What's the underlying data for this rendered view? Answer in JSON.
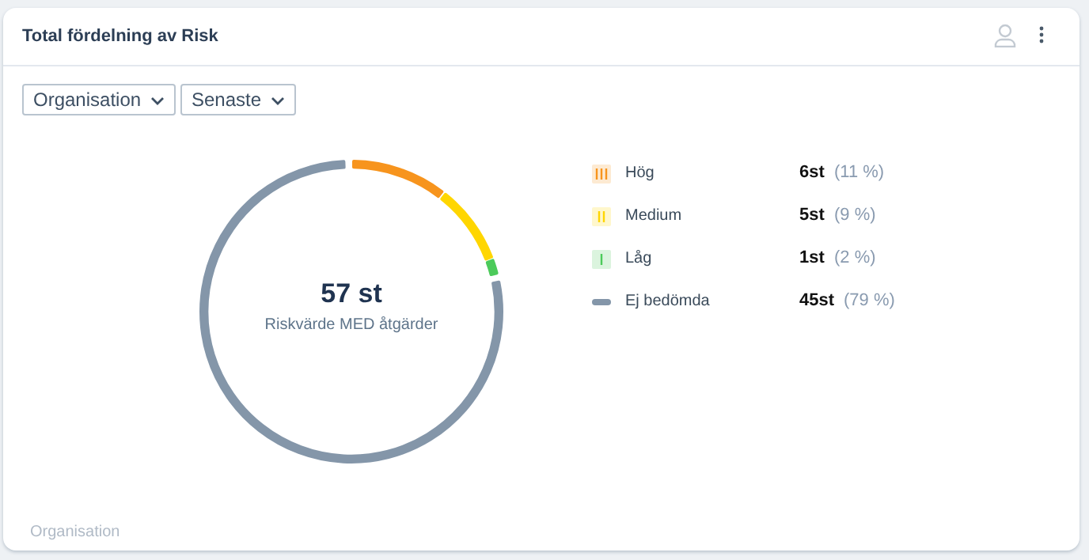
{
  "chart_data": {
    "type": "donut",
    "title": "Total fördelning av Risk",
    "categories": [
      "Hög",
      "Medium",
      "Låg",
      "Ej bedömda"
    ],
    "values": [
      6,
      5,
      1,
      45
    ],
    "colors": [
      "#f7941d",
      "#ffd600",
      "#4cca5a",
      "#8496a9"
    ],
    "value_labels": [
      "6st",
      "5st",
      "1st",
      "45st"
    ],
    "legend": "right",
    "annotations": [
      "57 st",
      "Riskvärde MED åtgärder",
      "(11 %)",
      "(9 %)",
      "(2 %)",
      "(79 %)",
      "Organisation",
      "Senaste",
      "Organisation"
    ]
  }
}
